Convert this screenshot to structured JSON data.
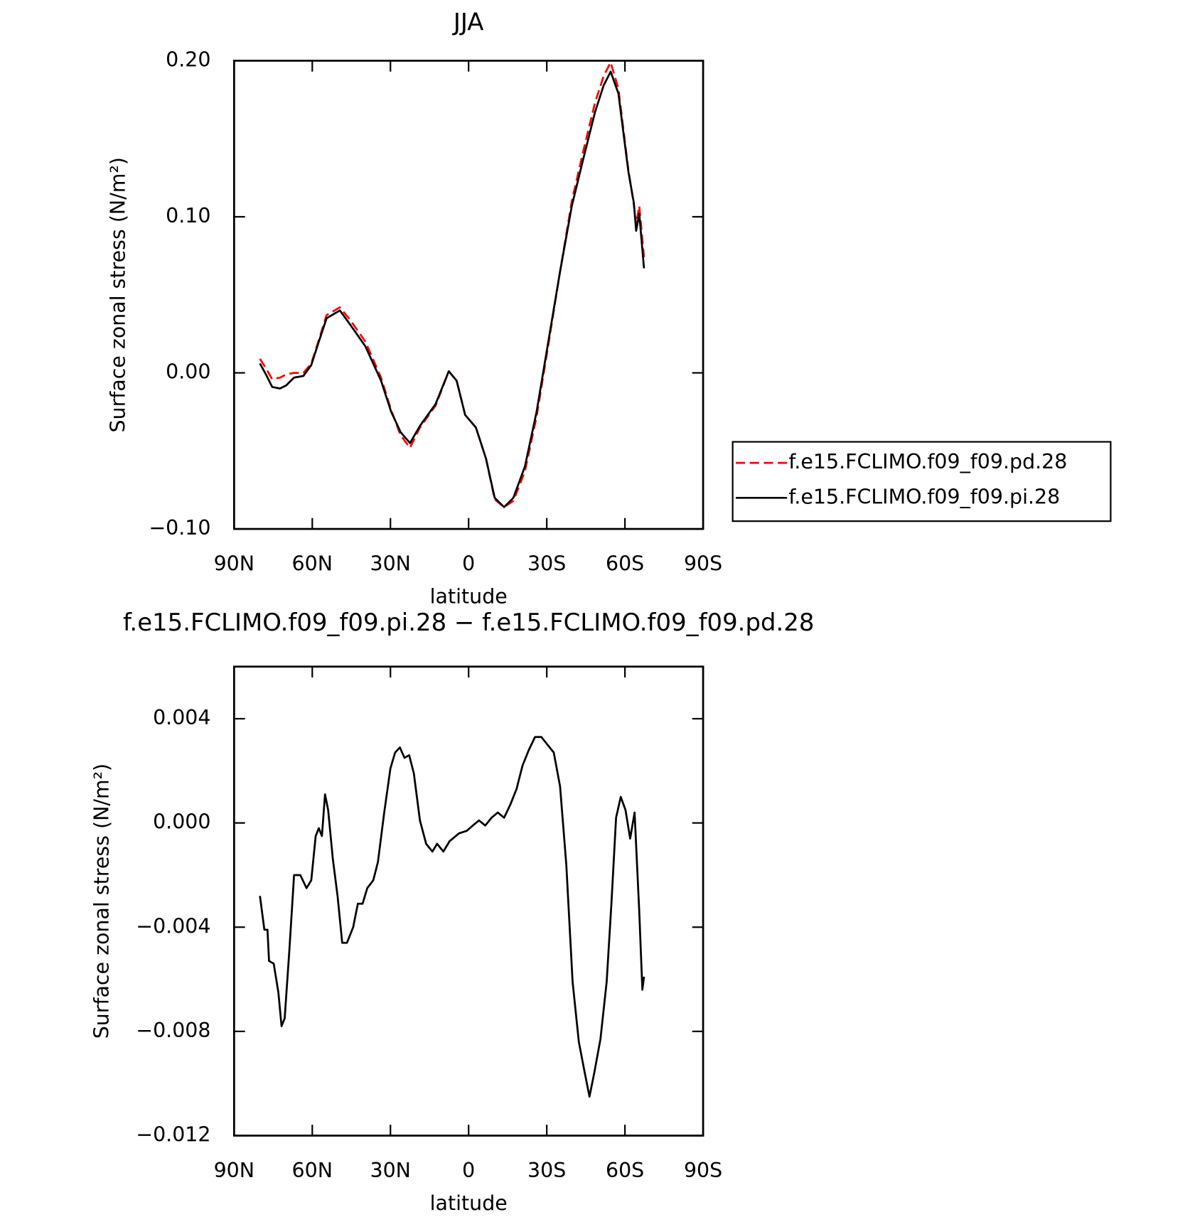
{
  "chart_data": [
    {
      "type": "line",
      "title": "JJA",
      "x_label": "latitude",
      "y_label": "Surface zonal stress (N/m²)",
      "xlim": [
        90,
        -90
      ],
      "ylim": [
        -0.1,
        0.2
      ],
      "xticks": [
        {
          "value": 90,
          "label": "90N"
        },
        {
          "value": 60,
          "label": "60N"
        },
        {
          "value": 30,
          "label": "30N"
        },
        0,
        {
          "value": -30,
          "label": "30S"
        },
        {
          "value": -60,
          "label": "60S"
        },
        {
          "value": -90,
          "label": "90S"
        }
      ],
      "yticks": [
        {
          "value": -0.1,
          "label": "−0.10"
        },
        {
          "value": 0,
          "label": "0.00"
        },
        {
          "value": 0.1,
          "label": "0.10"
        },
        {
          "value": 0.2,
          "label": "0.20"
        }
      ],
      "x": [
        80.1,
        77.8,
        75.4,
        72.4,
        70,
        67,
        63.4,
        60.4,
        57.5,
        54.5,
        49.4,
        45.5,
        39.6,
        33.6,
        29.7,
        26.1,
        22.5,
        18.7,
        12.7,
        7.6,
        4.6,
        1.3,
        -2.8,
        -6.7,
        -10,
        -13.6,
        -17.2,
        -21.6,
        -26.1,
        -30.6,
        -35.1,
        -39.6,
        -44,
        -48.5,
        -51.8,
        -54.5,
        -57.5,
        -61.3,
        -63.4,
        -64.3,
        -65.5,
        -67.3
      ],
      "series": [
        {
          "name": "f.e15.FCLIMO.f09_f09.pd.28",
          "color": "#ff0000",
          "dash": true,
          "values": [
            0.009,
            0.003,
            -0.004,
            -0.003,
            -0.001,
            0.0,
            0.0,
            0.006,
            0.021,
            0.037,
            0.042,
            0.034,
            0.02,
            -0.003,
            -0.024,
            -0.04,
            -0.048,
            -0.035,
            -0.021,
            0.001,
            -0.005,
            -0.027,
            -0.035,
            -0.055,
            -0.081,
            -0.086,
            -0.082,
            -0.063,
            -0.028,
            0.018,
            0.065,
            0.11,
            0.142,
            0.173,
            0.19,
            0.199,
            0.182,
            0.13,
            0.108,
            0.095,
            0.107,
            0.074
          ]
        },
        {
          "name": "f.e15.FCLIMO.f09_f09.pi.28",
          "color": "#000000",
          "dash": false,
          "values": [
            0.006,
            -0.001,
            -0.009,
            -0.01,
            -0.008,
            -0.003,
            -0.002,
            0.005,
            0.02,
            0.035,
            0.04,
            0.031,
            0.017,
            -0.005,
            -0.025,
            -0.038,
            -0.045,
            -0.034,
            -0.02,
            0.001,
            -0.005,
            -0.027,
            -0.035,
            -0.055,
            -0.08,
            -0.086,
            -0.08,
            -0.06,
            -0.025,
            0.02,
            0.065,
            0.107,
            0.137,
            0.167,
            0.184,
            0.193,
            0.179,
            0.129,
            0.109,
            0.091,
            0.102,
            0.067
          ]
        }
      ]
    },
    {
      "type": "line",
      "title": "f.e15.FCLIMO.f09_f09.pi.28 − f.e15.FCLIMO.f09_f09.pd.28",
      "x_label": "latitude",
      "y_label": "Surface zonal stress (N/m²)",
      "xlim": [
        90,
        -90
      ],
      "ylim": [
        -0.012,
        0.006
      ],
      "xticks": [
        {
          "value": 90,
          "label": "90N"
        },
        {
          "value": 60,
          "label": "60N"
        },
        {
          "value": 30,
          "label": "30N"
        },
        0,
        {
          "value": -30,
          "label": "30S"
        },
        {
          "value": -60,
          "label": "60S"
        },
        {
          "value": -90,
          "label": "90S"
        }
      ],
      "yticks": [
        {
          "value": -0.012,
          "label": "−0.012"
        },
        {
          "value": -0.008,
          "label": "−0.008"
        },
        {
          "value": -0.004,
          "label": "−0.004"
        },
        {
          "value": 0,
          "label": "0.000"
        },
        {
          "value": 0.004,
          "label": "0.004"
        }
      ],
      "x": [
        80.1,
        78.4,
        77.2,
        76.6,
        74.8,
        73,
        71.8,
        70.6,
        68.8,
        67,
        64.6,
        62.2,
        60.4,
        58.7,
        57.5,
        56.3,
        55.1,
        53.9,
        52.1,
        50.3,
        48.5,
        46.7,
        44.3,
        42.5,
        40.7,
        38.9,
        36.6,
        34.8,
        32.4,
        30,
        28.2,
        26.4,
        24.6,
        22.8,
        21,
        18.7,
        16.3,
        13.9,
        12.1,
        9.7,
        7.3,
        3.7,
        0.7,
        -1.6,
        -4,
        -6.4,
        -8.8,
        -11.2,
        -13.6,
        -16,
        -18.4,
        -20.7,
        -23.1,
        -25.5,
        -27.9,
        -30.3,
        -32.7,
        -35.1,
        -37.5,
        -39.9,
        -42.3,
        -44.6,
        -46.4,
        -48.2,
        -50.6,
        -53,
        -54.8,
        -56.6,
        -58.4,
        -60.2,
        -62,
        -63.7,
        -65.5,
        -66.7,
        -67.3
      ],
      "series": [
        {
          "color": "#000000",
          "dash": false,
          "values": [
            -0.0028,
            -0.0041,
            -0.0041,
            -0.0053,
            -0.0054,
            -0.0065,
            -0.0078,
            -0.0075,
            -0.0049,
            -0.002,
            -0.002,
            -0.0025,
            -0.0022,
            -0.0005,
            -0.0002,
            -0.0005,
            0.0011,
            0.0005,
            -0.0014,
            -0.0028,
            -0.0046,
            -0.0046,
            -0.004,
            -0.0031,
            -0.0031,
            -0.0025,
            -0.0022,
            -0.0015,
            0.0004,
            0.0021,
            0.0027,
            0.0029,
            0.0025,
            0.0026,
            0.0019,
            0.0001,
            -0.0008,
            -0.0011,
            -0.0008,
            -0.0011,
            -0.0007,
            -0.0004,
            -0.0003,
            -0.0001,
            0.0001,
            -0.0001,
            0.0002,
            0.0004,
            0.0002,
            0.0007,
            0.0013,
            0.0022,
            0.0028,
            0.0033,
            0.0033,
            0.003,
            0.0027,
            0.0014,
            -0.0016,
            -0.0061,
            -0.0084,
            -0.0096,
            -0.0105,
            -0.0096,
            -0.0083,
            -0.0061,
            -0.0031,
            0.0002,
            0.001,
            0.0005,
            -0.0006,
            0.0004,
            -0.0034,
            -0.0064,
            -0.0059
          ]
        }
      ]
    }
  ]
}
